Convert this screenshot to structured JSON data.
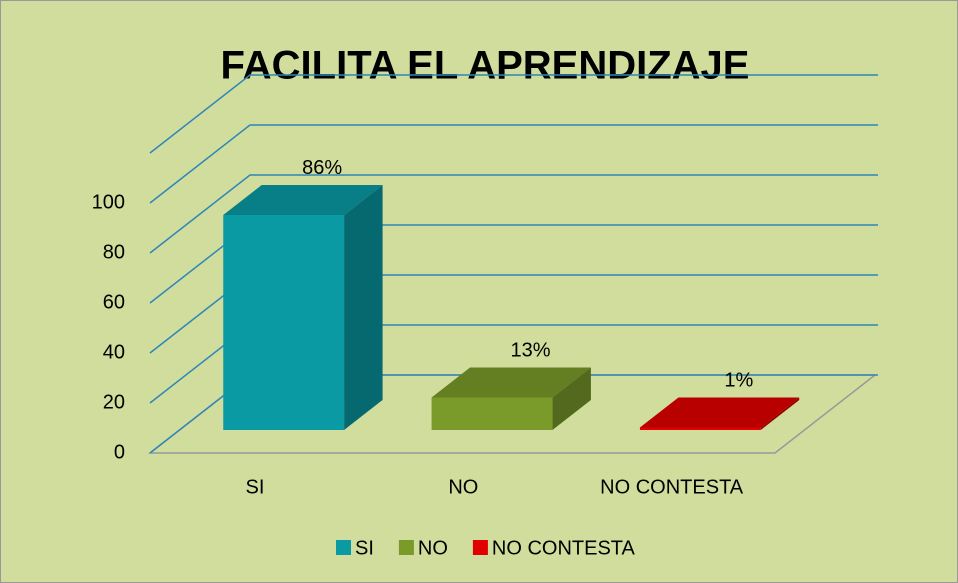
{
  "chart_data": {
    "type": "bar3d",
    "title": "FACILITA EL APRENDIZAJE",
    "categories": [
      "SI",
      "NO",
      "NO CONTESTA"
    ],
    "values": [
      86,
      13,
      1
    ],
    "value_labels": [
      "86%",
      "13%",
      "1%"
    ],
    "colors": [
      "#0a9aa4",
      "#7a9a2a",
      "#e00000"
    ],
    "ylim": [
      0,
      120
    ],
    "yticks": [
      0,
      20,
      40,
      60,
      80,
      100
    ],
    "grid": true,
    "legend": "bottom"
  }
}
